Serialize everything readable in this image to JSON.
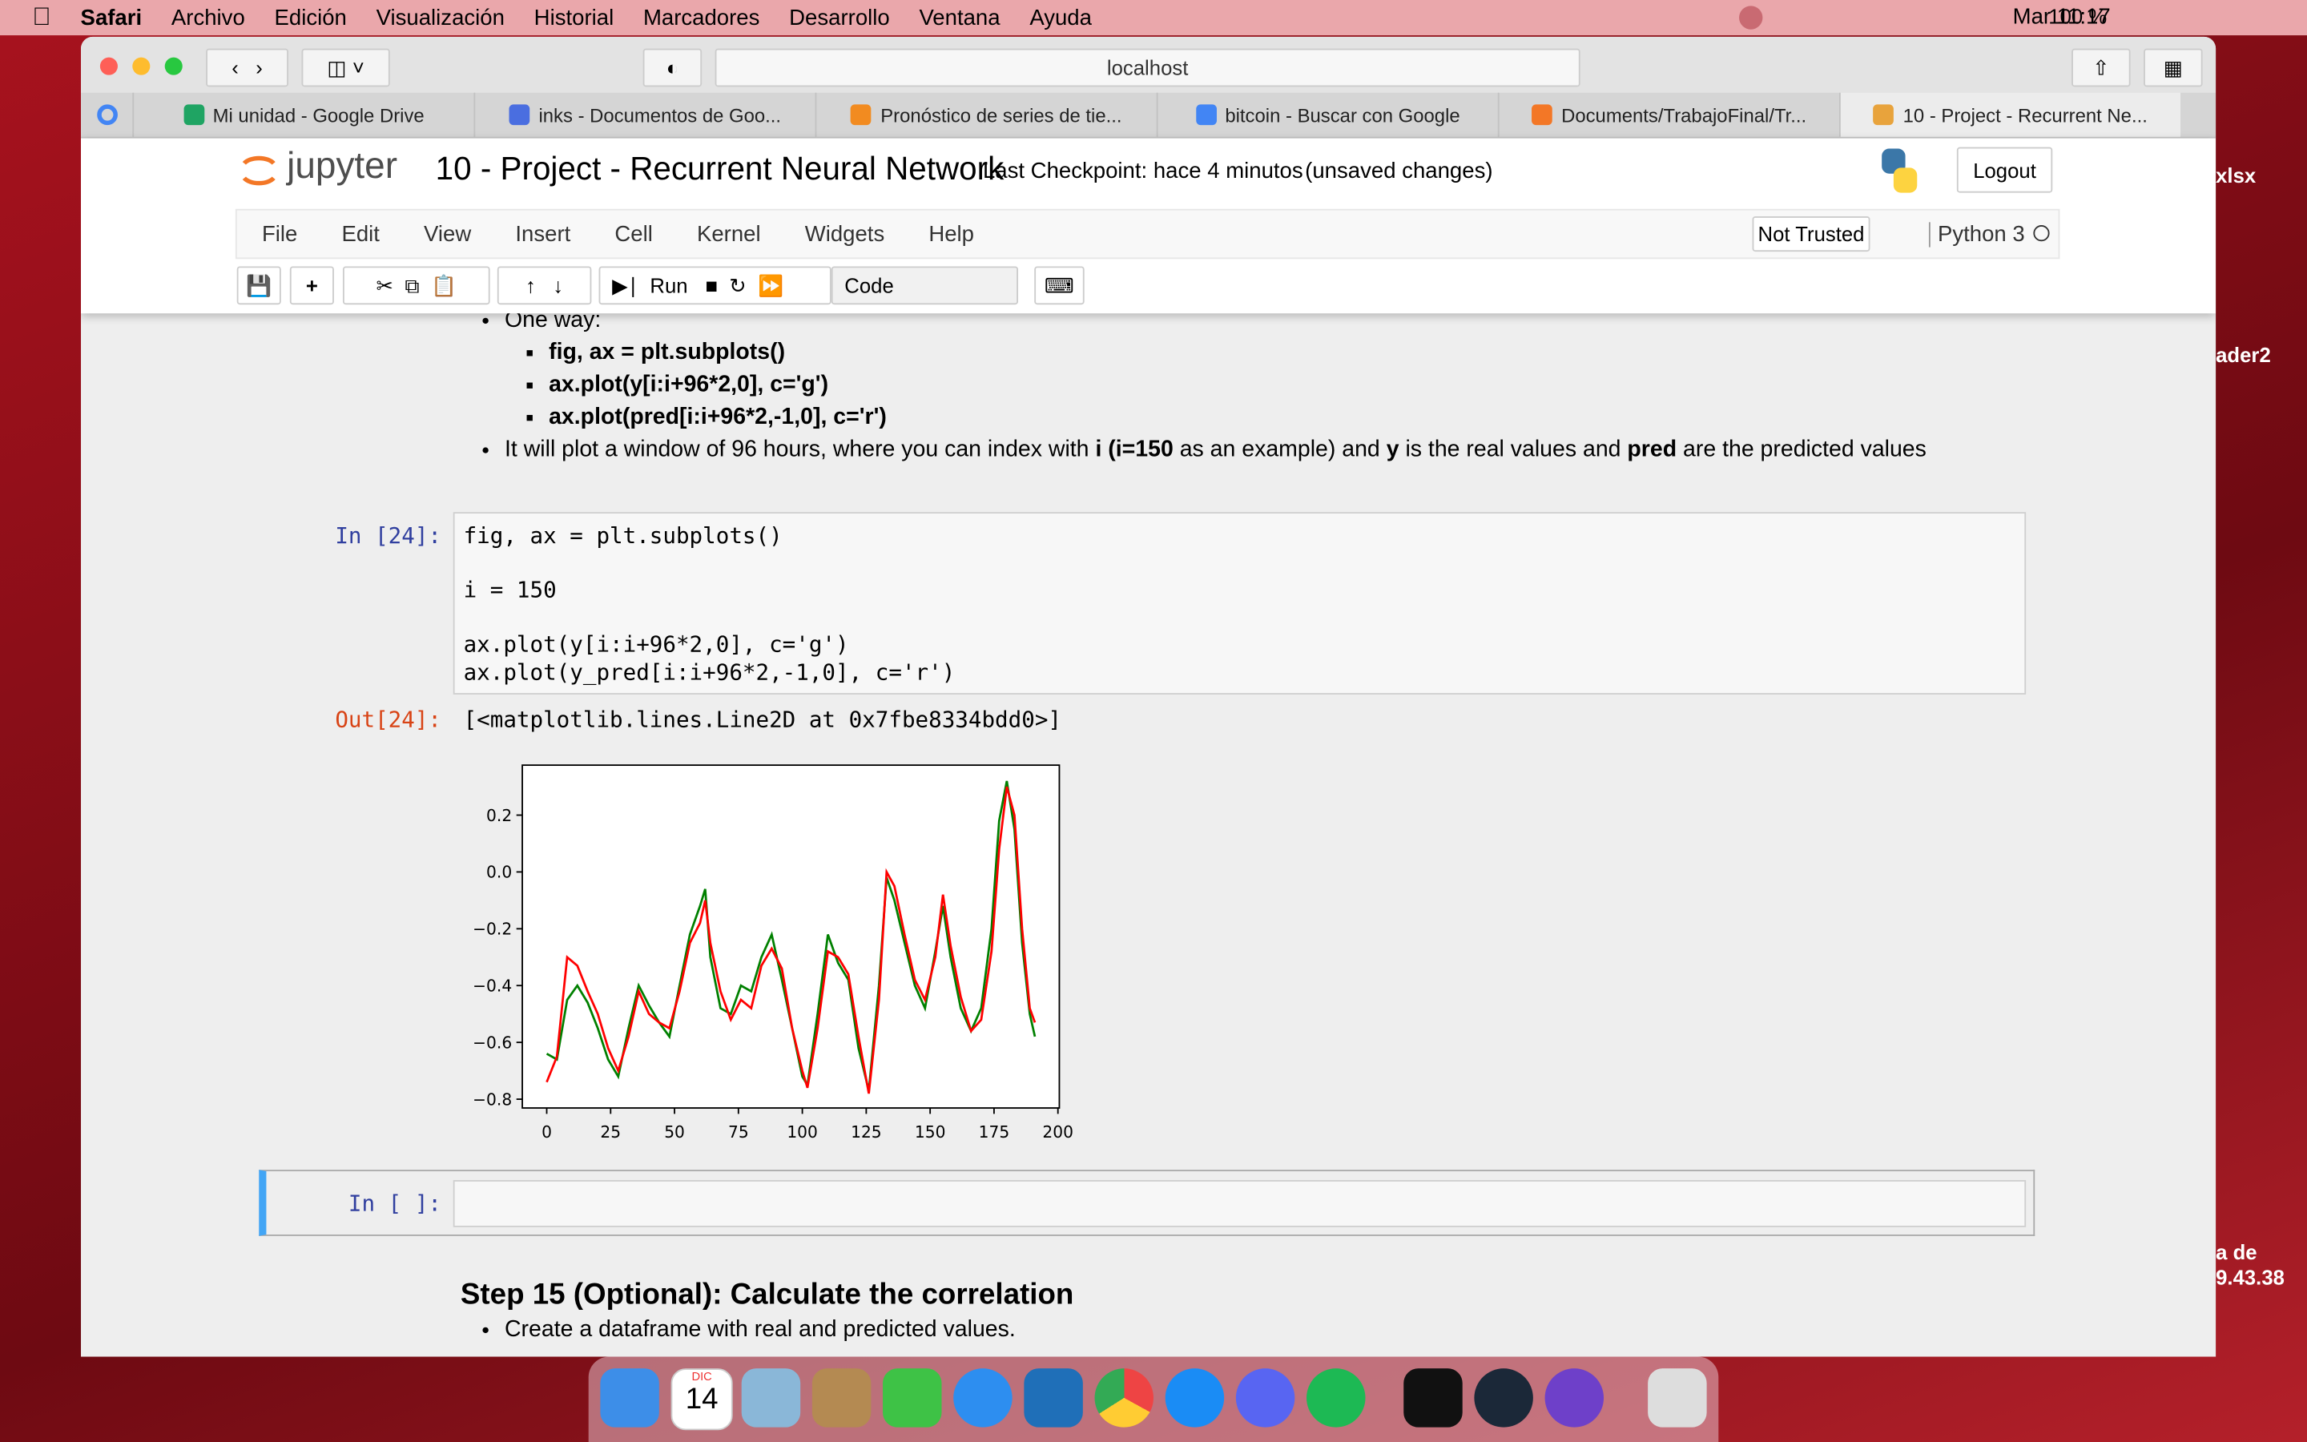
{
  "menubar": {
    "app": "Safari",
    "items": [
      "Archivo",
      "Edición",
      "Visualización",
      "Historial",
      "Marcadores",
      "Desarrollo",
      "Ventana",
      "Ayuda"
    ],
    "battery": "100 %",
    "clock": "Mar 11:17"
  },
  "browser": {
    "address": "localhost",
    "tabs": [
      "Mi unidad - Google Drive",
      "inks - Documentos de Goo...",
      "Pronóstico de series de tie...",
      "bitcoin - Buscar con Google",
      "Documents/TrabajoFinal/Tr...",
      "10 - Project - Recurrent Ne..."
    ]
  },
  "jupyter": {
    "logo": "jupyter",
    "title": "10 - Project - Recurrent Neural Network",
    "checkpoint": "Last Checkpoint: hace 4 minutos",
    "status": "(unsaved changes)",
    "logout": "Logout",
    "menu": [
      "File",
      "Edit",
      "View",
      "Insert",
      "Cell",
      "Kernel",
      "Widgets",
      "Help"
    ],
    "trusted": "Not Trusted",
    "kernel": "Python 3",
    "run": "Run",
    "cell_type": "Code"
  },
  "notebook": {
    "bullets": [
      {
        "runs": [
          {
            "text": "One way:"
          }
        ],
        "sub": [
          [
            {
              "text": "fig, ax = plt.subplots()",
              "bold": true
            }
          ],
          [
            {
              "text": "ax.plot(y[i:i+96*2,0], c='g')",
              "bold": true
            }
          ],
          [
            {
              "text": "ax.plot(pred[i:i+96*2,-1,0], c='r')",
              "bold": true
            }
          ]
        ]
      },
      {
        "runs": [
          {
            "text": "It will plot a window of 96 hours, where you can index with "
          },
          {
            "text": "i (i=150",
            "bold": true
          },
          {
            "text": " as an example) and "
          },
          {
            "text": "y",
            "bold": true
          },
          {
            "text": " is the real values and "
          },
          {
            "text": "pred",
            "bold": true
          },
          {
            "text": " are the predicted values"
          }
        ]
      }
    ],
    "code_prompt": "In [24]:",
    "code": [
      [
        "fig, ax = plt.subplots()"
      ],
      [
        "i = 150"
      ],
      [
        "ax.plot(y[i:i+96*2,0], c='g')",
        "ax.plot(y_pred[i:i+96*2,-1,0], c='r')"
      ]
    ],
    "out_prompt": "Out[24]:",
    "output": "[<matplotlib.lines.Line2D at 0x7fbe8334bdd0>]",
    "empty_prompt": "In [ ]:",
    "heading": "Step 15 (Optional): Calculate the correlation",
    "last_bullet": "Create a dataframe with real and predicted values."
  },
  "desktop": [
    "xlsx",
    "ader2",
    "a de",
    "9.43.38"
  ],
  "dock": {
    "month": "DIC",
    "day": "14"
  },
  "chart_data": {
    "type": "line",
    "xlim": [
      -9.55,
      200.55
    ],
    "ylim": [
      -0.831,
      0.376
    ],
    "xticks": [
      0,
      25,
      50,
      75,
      100,
      125,
      150,
      175,
      200
    ],
    "yticks": [
      {
        "value": -0.8,
        "label": "−0.8"
      },
      {
        "value": -0.6,
        "label": "−0.6"
      },
      {
        "value": -0.4,
        "label": "−0.4"
      },
      {
        "value": -0.2,
        "label": "−0.2"
      },
      {
        "value": 0,
        "label": "0.0"
      },
      0.2
    ],
    "x": [
      0,
      4,
      8,
      12,
      16,
      20,
      24,
      28,
      32,
      36,
      40,
      44,
      48,
      52,
      56,
      60,
      62,
      64,
      68,
      72,
      76,
      80,
      84,
      88,
      92,
      96,
      100,
      102,
      106,
      110,
      114,
      118,
      122,
      126,
      130,
      133,
      136,
      140,
      144,
      148,
      152,
      155,
      158,
      162,
      166,
      170,
      174,
      177,
      180,
      183,
      186,
      189,
      191
    ],
    "series": [
      {
        "color": "#008000",
        "values": [
          -0.64,
          -0.66,
          -0.45,
          -0.4,
          -0.46,
          -0.55,
          -0.66,
          -0.72,
          -0.55,
          -0.4,
          -0.47,
          -0.53,
          -0.58,
          -0.4,
          -0.22,
          -0.12,
          -0.06,
          -0.3,
          -0.48,
          -0.5,
          -0.4,
          -0.42,
          -0.3,
          -0.22,
          -0.38,
          -0.55,
          -0.72,
          -0.75,
          -0.5,
          -0.22,
          -0.32,
          -0.38,
          -0.62,
          -0.77,
          -0.4,
          -0.02,
          -0.1,
          -0.25,
          -0.4,
          -0.48,
          -0.28,
          -0.12,
          -0.3,
          -0.48,
          -0.56,
          -0.48,
          -0.2,
          0.18,
          0.32,
          0.15,
          -0.25,
          -0.5,
          -0.58
        ]
      },
      {
        "color": "#ff0000",
        "values": [
          -0.74,
          -0.65,
          -0.3,
          -0.33,
          -0.42,
          -0.5,
          -0.62,
          -0.7,
          -0.58,
          -0.42,
          -0.5,
          -0.53,
          -0.55,
          -0.42,
          -0.25,
          -0.18,
          -0.1,
          -0.25,
          -0.42,
          -0.52,
          -0.45,
          -0.48,
          -0.33,
          -0.27,
          -0.34,
          -0.55,
          -0.7,
          -0.76,
          -0.55,
          -0.28,
          -0.3,
          -0.36,
          -0.58,
          -0.78,
          -0.45,
          0,
          -0.05,
          -0.22,
          -0.38,
          -0.45,
          -0.3,
          -0.08,
          -0.26,
          -0.44,
          -0.56,
          -0.52,
          -0.28,
          0.08,
          0.3,
          0.2,
          -0.2,
          -0.48,
          -0.53
        ]
      }
    ]
  }
}
